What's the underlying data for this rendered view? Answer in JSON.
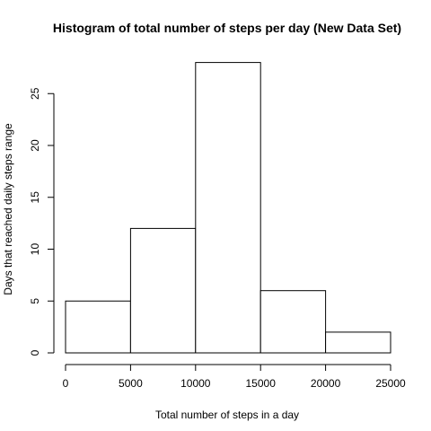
{
  "chart_data": {
    "type": "bar",
    "title": "Histogram of total number of steps per day (New Data Set)",
    "xlabel": "Total number of steps in a day",
    "ylabel": "Days that reached daily steps range",
    "bins": [
      {
        "start": 0,
        "end": 5000,
        "count": 5
      },
      {
        "start": 5000,
        "end": 10000,
        "count": 12
      },
      {
        "start": 10000,
        "end": 15000,
        "count": 28
      },
      {
        "start": 15000,
        "end": 20000,
        "count": 6
      },
      {
        "start": 20000,
        "end": 25000,
        "count": 2
      }
    ],
    "xlim": [
      0,
      25000
    ],
    "ylim": [
      0,
      28
    ],
    "x_ticks": [
      "0",
      "5000",
      "10000",
      "15000",
      "20000",
      "25000"
    ],
    "y_ticks": [
      "0",
      "5",
      "10",
      "15",
      "20",
      "25"
    ],
    "grid": false,
    "bar_fill": "#ffffff",
    "bar_stroke": "#000000"
  }
}
